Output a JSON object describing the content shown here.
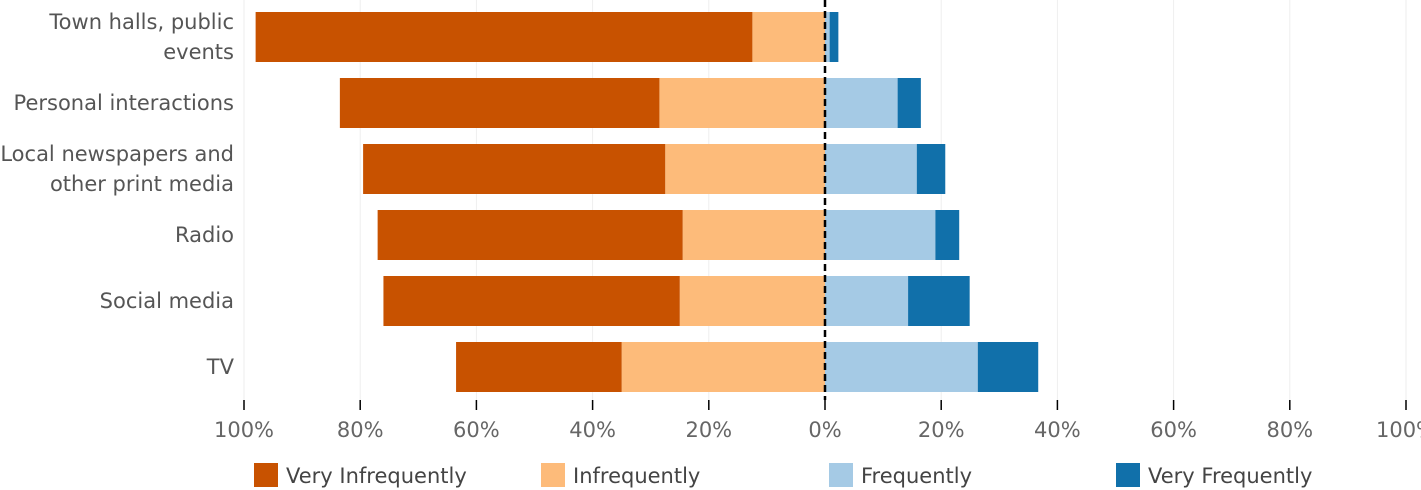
{
  "chart_data": {
    "type": "bar",
    "orientation": "horizontal",
    "stacked": "diverging",
    "categories": [
      [
        "Town halls, public",
        "events"
      ],
      [
        "Personal interactions"
      ],
      [
        "Local newspapers and",
        "other print media"
      ],
      [
        "Radio"
      ],
      [
        "Social media"
      ],
      [
        "TV"
      ]
    ],
    "series": [
      {
        "name": "Very Infrequently",
        "side": "negative",
        "color": "#c85200",
        "values": [
          85.5,
          55.0,
          52.0,
          52.5,
          51.0,
          28.5
        ]
      },
      {
        "name": "Infrequently",
        "side": "negative",
        "color": "#fdbb7a",
        "values": [
          12.5,
          28.5,
          27.5,
          24.5,
          25.0,
          35.0
        ]
      },
      {
        "name": "Frequently",
        "side": "positive",
        "color": "#a5cae5",
        "values": [
          0.8,
          12.5,
          15.8,
          19.0,
          14.3,
          26.3
        ]
      },
      {
        "name": "Very Frequently",
        "side": "positive",
        "color": "#1170aa",
        "values": [
          1.5,
          4.0,
          4.9,
          4.1,
          10.6,
          10.4
        ]
      }
    ],
    "xlim": [
      -100,
      100
    ],
    "x_ticks": [
      -100,
      -80,
      -60,
      -40,
      -20,
      0,
      20,
      40,
      60,
      80,
      100
    ],
    "x_tick_labels": [
      "100%",
      "80%",
      "60%",
      "40%",
      "20%",
      "0%",
      "20%",
      "40%",
      "60%",
      "80%",
      "100%"
    ],
    "grid": "vertical",
    "legend_position": "bottom",
    "legend": [
      "Very Infrequently",
      "Infrequently",
      "Frequently",
      "Very Frequently"
    ]
  }
}
